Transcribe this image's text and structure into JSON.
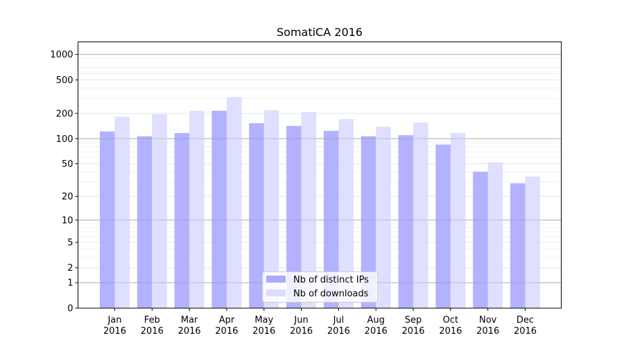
{
  "chart_data": {
    "type": "bar",
    "title": "SomatiCA 2016",
    "xlabel": "",
    "ylabel": "",
    "yscale": "log10(y+1)",
    "ylim": [
      0,
      1000
    ],
    "yticks": [
      0,
      1,
      2,
      5,
      10,
      20,
      50,
      100,
      200,
      500,
      1000
    ],
    "grid": true,
    "legend_placement": "bottom-center",
    "categories": [
      [
        "Jan",
        "2016"
      ],
      [
        "Feb",
        "2016"
      ],
      [
        "Mar",
        "2016"
      ],
      [
        "Apr",
        "2016"
      ],
      [
        "May",
        "2016"
      ],
      [
        "Jun",
        "2016"
      ],
      [
        "Jul",
        "2016"
      ],
      [
        "Aug",
        "2016"
      ],
      [
        "Sep",
        "2016"
      ],
      [
        "Oct",
        "2016"
      ],
      [
        "Nov",
        "2016"
      ],
      [
        "Dec",
        "2016"
      ]
    ],
    "series": [
      {
        "name": "Nb of distinct IPs",
        "color": "#aaaaff",
        "values": [
          122,
          107,
          117,
          215,
          153,
          142,
          124,
          107,
          110,
          85,
          40,
          29
        ]
      },
      {
        "name": "Nb of downloads",
        "color": "#ddddff",
        "values": [
          182,
          196,
          215,
          314,
          219,
          207,
          171,
          139,
          156,
          117,
          52,
          35
        ]
      }
    ]
  }
}
